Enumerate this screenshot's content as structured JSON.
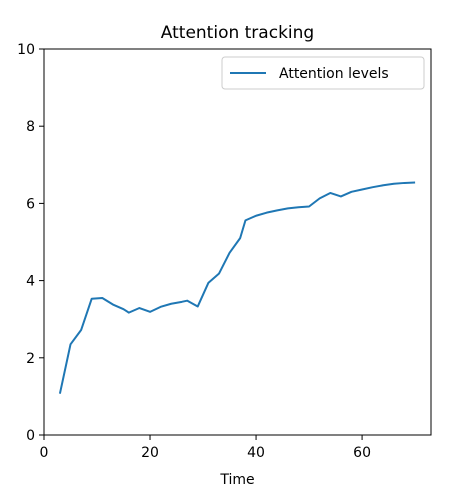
{
  "chart_data": {
    "type": "line",
    "title": "Attention tracking",
    "xlabel": "Time",
    "ylabel": "",
    "xlim": [
      0,
      73
    ],
    "ylim": [
      0,
      10
    ],
    "xticks": [
      0,
      20,
      40,
      60
    ],
    "yticks": [
      0,
      2,
      4,
      6,
      8,
      10
    ],
    "grid": false,
    "legend_position": "top-right",
    "series": [
      {
        "name": "Attention levels",
        "color": "#1f77b4",
        "x": [
          3,
          5,
          7,
          9,
          11,
          13,
          15,
          16,
          18,
          20,
          22,
          24,
          26,
          27,
          29,
          31,
          33,
          35,
          37,
          38,
          40,
          42,
          44,
          46,
          48,
          50,
          52,
          54,
          56,
          58,
          60,
          62,
          64,
          66,
          68,
          70
        ],
        "y": [
          1.07,
          2.35,
          2.72,
          3.53,
          3.55,
          3.38,
          3.26,
          3.17,
          3.29,
          3.19,
          3.32,
          3.4,
          3.45,
          3.48,
          3.33,
          3.94,
          4.18,
          4.72,
          5.1,
          5.56,
          5.68,
          5.76,
          5.82,
          5.87,
          5.9,
          5.92,
          6.13,
          6.27,
          6.18,
          6.3,
          6.36,
          6.42,
          6.47,
          6.51,
          6.53,
          6.54
        ]
      }
    ]
  }
}
